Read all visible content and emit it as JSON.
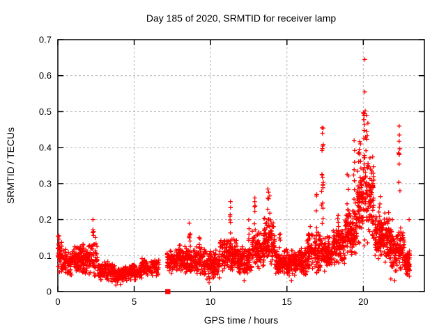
{
  "chart_data": {
    "type": "scatter",
    "title": "Day 185 of 2020, SRMTID for receiver lamp",
    "xlabel": "GPS time / hours",
    "ylabel": "SRMTID / TECUs",
    "xlim": [
      0,
      24
    ],
    "ylim": [
      0,
      0.7
    ],
    "xticks": [
      0,
      5,
      10,
      15,
      20
    ],
    "yticks": [
      0,
      0.1,
      0.2,
      0.3,
      0.4,
      0.5,
      0.6,
      0.7
    ],
    "grid": "dashed",
    "grid_color": "#b4b4b4",
    "marker": "plus",
    "marker_color": "#ff0000",
    "seed": 185,
    "bands": [
      [
        0.0,
        0.3,
        40,
        0.05,
        0.15
      ],
      [
        0.3,
        0.9,
        70,
        0.04,
        0.12
      ],
      [
        0.9,
        1.6,
        90,
        0.05,
        0.13
      ],
      [
        1.6,
        2.6,
        115,
        0.04,
        0.135
      ],
      [
        2.6,
        3.6,
        110,
        0.025,
        0.09
      ],
      [
        3.6,
        4.6,
        105,
        0.02,
        0.075
      ],
      [
        4.6,
        5.5,
        95,
        0.03,
        0.08
      ],
      [
        5.5,
        6.65,
        110,
        0.04,
        0.095
      ],
      [
        7.15,
        7.7,
        70,
        0.05,
        0.12
      ],
      [
        7.7,
        8.6,
        105,
        0.05,
        0.135
      ],
      [
        8.6,
        9.6,
        115,
        0.04,
        0.13
      ],
      [
        9.6,
        10.6,
        125,
        0.03,
        0.12
      ],
      [
        10.6,
        11.7,
        135,
        0.05,
        0.16
      ],
      [
        11.7,
        12.7,
        125,
        0.04,
        0.135
      ],
      [
        12.7,
        13.5,
        105,
        0.06,
        0.17
      ],
      [
        13.5,
        14.2,
        95,
        0.07,
        0.21
      ],
      [
        14.2,
        15.3,
        125,
        0.04,
        0.12
      ],
      [
        15.3,
        16.3,
        125,
        0.04,
        0.125
      ],
      [
        16.3,
        17.2,
        115,
        0.05,
        0.17
      ],
      [
        17.2,
        18.0,
        105,
        0.05,
        0.155
      ],
      [
        18.0,
        18.8,
        105,
        0.07,
        0.19
      ],
      [
        18.8,
        19.6,
        115,
        0.09,
        0.24
      ],
      [
        19.6,
        20.7,
        170,
        0.12,
        0.38
      ],
      [
        20.7,
        21.7,
        155,
        0.08,
        0.23
      ],
      [
        21.7,
        22.7,
        150,
        0.05,
        0.185
      ],
      [
        22.7,
        23.05,
        55,
        0.04,
        0.12
      ]
    ],
    "spikes": [
      [
        0.05,
        4,
        0.1,
        0.155,
        0.04
      ],
      [
        2.32,
        3,
        0.15,
        0.205,
        0.05
      ],
      [
        8.62,
        5,
        0.13,
        0.185,
        0.06
      ],
      [
        9.3,
        4,
        0.12,
        0.165,
        0.05
      ],
      [
        11.32,
        6,
        0.16,
        0.25,
        0.05
      ],
      [
        12.55,
        5,
        0.14,
        0.205,
        0.06
      ],
      [
        12.9,
        6,
        0.16,
        0.26,
        0.06
      ],
      [
        13.8,
        10,
        0.18,
        0.285,
        0.08
      ],
      [
        14.55,
        5,
        0.12,
        0.185,
        0.05
      ],
      [
        16.5,
        5,
        0.12,
        0.185,
        0.06
      ],
      [
        16.95,
        6,
        0.15,
        0.27,
        0.05
      ],
      [
        17.32,
        18,
        0.17,
        0.455,
        0.06
      ],
      [
        18.35,
        5,
        0.13,
        0.22,
        0.05
      ],
      [
        19.0,
        8,
        0.2,
        0.33,
        0.07
      ],
      [
        19.42,
        12,
        0.2,
        0.42,
        0.06
      ],
      [
        19.75,
        10,
        0.25,
        0.42,
        0.07
      ],
      [
        20.05,
        12,
        0.3,
        0.5,
        0.07
      ],
      [
        20.2,
        10,
        0.28,
        0.46,
        0.07
      ],
      [
        20.45,
        8,
        0.2,
        0.38,
        0.06
      ],
      [
        21.1,
        6,
        0.18,
        0.27,
        0.06
      ],
      [
        22.35,
        8,
        0.2,
        0.46,
        0.05
      ]
    ],
    "outliers": [
      [
        20.1,
        0.645
      ],
      [
        20.1,
        0.555
      ],
      [
        20.12,
        0.502
      ],
      [
        20.0,
        0.497
      ],
      [
        20.22,
        0.49
      ],
      [
        20.05,
        0.478
      ],
      [
        20.3,
        0.468
      ],
      [
        2.3,
        0.2
      ],
      [
        2.3,
        0.172
      ],
      [
        2.45,
        0.15
      ],
      [
        13.75,
        0.285
      ],
      [
        11.3,
        0.25
      ],
      [
        12.9,
        0.26
      ],
      [
        16.95,
        0.27
      ],
      [
        17.3,
        0.455
      ],
      [
        17.32,
        0.44
      ],
      [
        19.4,
        0.42
      ],
      [
        22.35,
        0.46
      ],
      [
        22.36,
        0.435
      ],
      [
        22.3,
        0.385
      ],
      [
        0.07,
        0.155
      ],
      [
        23.0,
        0.2
      ],
      [
        21.9,
        0.2
      ],
      [
        8.6,
        0.19
      ],
      [
        21.8,
        0.035
      ],
      [
        22.05,
        0.03
      ],
      [
        15.3,
        0.03
      ],
      [
        3.8,
        0.018
      ],
      [
        4.1,
        0.02
      ],
      [
        9.9,
        0.025
      ],
      [
        12.2,
        0.03
      ]
    ],
    "square_point": [
      7.2,
      0.0
    ]
  }
}
